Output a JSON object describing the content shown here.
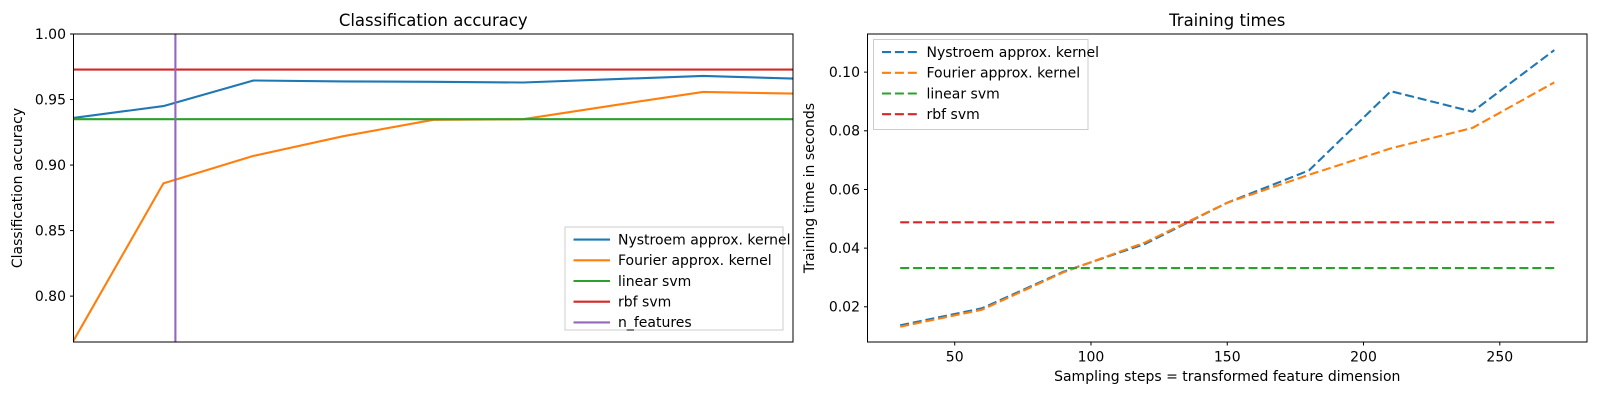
{
  "figure": {
    "background": "#ffffff"
  },
  "palette": {
    "blue": "#1f77b4",
    "orange": "#ff7f0e",
    "green": "#2ca02c",
    "red": "#d62728",
    "purple": "#9467bd",
    "spine": "#000000",
    "legend_border": "#cccccc",
    "legend_bg": "#ffffff"
  },
  "chart_data": [
    {
      "id": "classification-accuracy",
      "type": "line",
      "title": "Classification accuracy",
      "xlabel": "",
      "ylabel": "Classification accuracy",
      "xlim": [
        30,
        270
      ],
      "ylim": [
        0.765,
        1.0
      ],
      "xticks": [],
      "xtick_labels": [],
      "yticks": [
        0.8,
        0.85,
        0.9,
        0.95,
        1.0
      ],
      "ytick_labels": [
        "0.80",
        "0.85",
        "0.90",
        "0.95",
        "1.00"
      ],
      "grid": false,
      "legend_loc": "lower-right",
      "x": [
        30,
        60,
        90,
        120,
        150,
        180,
        210,
        240,
        270
      ],
      "series": [
        {
          "name": "Nystroem approx. kernel",
          "color": "blue",
          "dash": false,
          "y": [
            0.936,
            0.945,
            0.9645,
            0.9638,
            0.9635,
            0.963,
            0.9655,
            0.968,
            0.966
          ]
        },
        {
          "name": "Fourier approx. kernel",
          "color": "orange",
          "dash": false,
          "y": [
            0.766,
            0.886,
            0.907,
            0.922,
            0.9345,
            0.935,
            0.9455,
            0.9558,
            0.9545
          ]
        },
        {
          "name": "linear svm",
          "color": "green",
          "dash": false,
          "hline": 0.935,
          "span": [
            30,
            270
          ]
        },
        {
          "name": "rbf svm",
          "color": "red",
          "dash": false,
          "hline": 0.9728,
          "span": [
            30,
            270
          ]
        },
        {
          "name": "n_features",
          "color": "purple",
          "dash": false,
          "vline": 64
        }
      ]
    },
    {
      "id": "training-times",
      "type": "line",
      "title": "Training times",
      "xlabel": "Sampling steps = transformed feature dimension",
      "ylabel": "Training time in seconds",
      "xlim": [
        18,
        282
      ],
      "ylim": [
        0.008,
        0.113
      ],
      "xticks": [
        50,
        100,
        150,
        200,
        250
      ],
      "xtick_labels": [
        "50",
        "100",
        "150",
        "200",
        "250"
      ],
      "yticks": [
        0.02,
        0.04,
        0.06,
        0.08,
        0.1
      ],
      "ytick_labels": [
        "0.02",
        "0.04",
        "0.06",
        "0.08",
        "0.10"
      ],
      "grid": false,
      "legend_loc": "upper-left",
      "x": [
        30,
        60,
        90,
        120,
        150,
        180,
        210,
        240,
        270
      ],
      "series": [
        {
          "name": "Nystroem approx. kernel",
          "color": "blue",
          "dash": true,
          "y": [
            0.0137,
            0.0195,
            0.032,
            0.0415,
            0.0555,
            0.0665,
            0.0935,
            0.0865,
            0.1075
          ]
        },
        {
          "name": "Fourier approx. kernel",
          "color": "orange",
          "dash": true,
          "y": [
            0.0132,
            0.019,
            0.0318,
            0.042,
            0.0555,
            0.065,
            0.074,
            0.081,
            0.0965
          ]
        },
        {
          "name": "linear svm",
          "color": "green",
          "dash": true,
          "hline": 0.0332,
          "span": [
            30,
            270
          ]
        },
        {
          "name": "rbf svm",
          "color": "red",
          "dash": true,
          "hline": 0.0488,
          "span": [
            30,
            270
          ]
        }
      ]
    }
  ]
}
